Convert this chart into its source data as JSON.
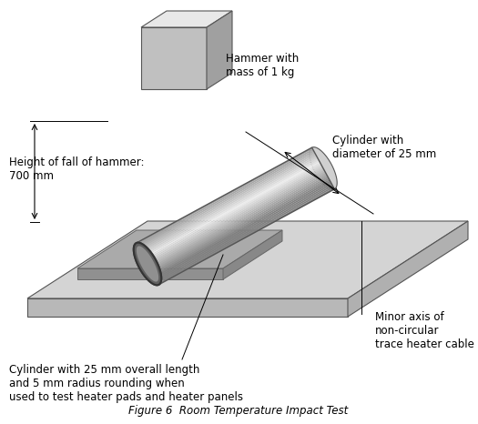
{
  "title": "Figure 6  Room Temperature Impact Test",
  "background_color": "#ffffff",
  "annotations": {
    "hammer_label": "Hammer with\nmass of 1 kg",
    "height_label": "Height of fall of hammer:\n700 mm",
    "cylinder_diameter_label": "Cylinder with\ndiameter of 25 mm",
    "cylinder_length_label": "Cylinder with 25 mm overall length\nand 5 mm radius rounding when\nused to test heater pads and heater panels",
    "minor_axis_label": "Minor axis of\nnon-circular\ntrace heater cable"
  },
  "colors": {
    "cube_face_top": "#e8e8e8",
    "cube_face_front": "#c0c0c0",
    "cube_face_right": "#a0a0a0",
    "cube_edge": "#555555",
    "plate_top": "#d4d4d4",
    "plate_front": "#b8b8b8",
    "plate_right": "#a8a8a8",
    "plate_edge": "#555555",
    "text_color": "#000000"
  },
  "font_size": 8.5
}
